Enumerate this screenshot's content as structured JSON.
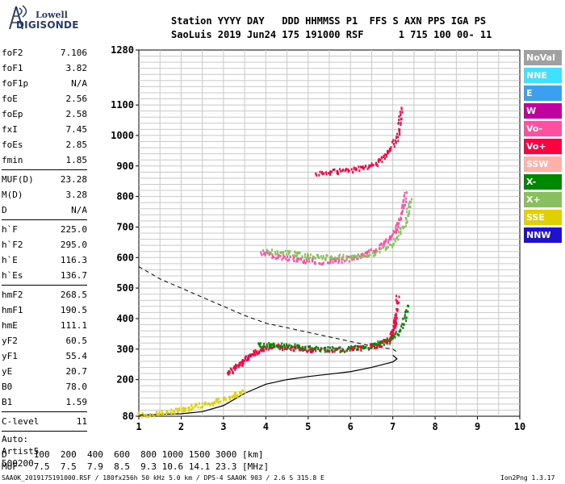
{
  "logo": {
    "line1": "Lowell",
    "line2": "DIGISONDE"
  },
  "header": {
    "line1": "Station YYYY DAY   DDD HHMMSS P1  FFS S AXN PPS IGA PS",
    "line2": "SaoLuis 2019 Jun24 175 191000 RSF      1 715 100 00- 11"
  },
  "params": [
    {
      "group": [
        {
          "label": "foF2",
          "value": "7.106"
        },
        {
          "label": "foF1",
          "value": "3.82"
        },
        {
          "label": "foF1p",
          "value": "N/A"
        },
        {
          "label": "foE",
          "value": "2.56"
        },
        {
          "label": "foEp",
          "value": "2.58"
        },
        {
          "label": "fxI",
          "value": "7.45"
        },
        {
          "label": "foEs",
          "value": "2.85"
        },
        {
          "label": "fmin",
          "value": "1.85"
        }
      ]
    },
    {
      "group": [
        {
          "label": "MUF(D)",
          "value": "23.28"
        },
        {
          "label": "M(D)",
          "value": "3.28"
        },
        {
          "label": "D",
          "value": "N/A"
        }
      ]
    },
    {
      "group": [
        {
          "label": "h`F",
          "value": "225.0"
        },
        {
          "label": "h`F2",
          "value": "295.0"
        },
        {
          "label": "h`E",
          "value": "116.3"
        },
        {
          "label": "h`Es",
          "value": "136.7"
        }
      ]
    },
    {
      "group": [
        {
          "label": "hmF2",
          "value": "268.5"
        },
        {
          "label": "hmF1",
          "value": "190.5"
        },
        {
          "label": "hmE",
          "value": "111.1"
        },
        {
          "label": "yF2",
          "value": "60.5"
        },
        {
          "label": "yF1",
          "value": "55.4"
        },
        {
          "label": "yE",
          "value": "20.7"
        },
        {
          "label": "B0",
          "value": "78.0"
        },
        {
          "label": "B1",
          "value": "1.59"
        }
      ]
    },
    {
      "group": [
        {
          "label": "C-level",
          "value": "11"
        }
      ]
    }
  ],
  "auto_info": [
    "Auto:",
    "Artist5",
    "500200"
  ],
  "legend": [
    {
      "label": "NoVal",
      "color": "#a0a0a0"
    },
    {
      "label": "NNE",
      "color": "#40e0ff"
    },
    {
      "label": "E",
      "color": "#3ca0f0"
    },
    {
      "label": "W",
      "color": "#c000a0"
    },
    {
      "label": "Vo-",
      "color": "#ff4fa0"
    },
    {
      "label": "Vo+",
      "color": "#ff0040"
    },
    {
      "label": "SSW",
      "color": "#ffb0a8"
    },
    {
      "label": "X-",
      "color": "#008800"
    },
    {
      "label": "X+",
      "color": "#88c060"
    },
    {
      "label": "SSE",
      "color": "#e0d000"
    },
    {
      "label": "NNW",
      "color": "#2010d0"
    }
  ],
  "bottom": {
    "line1": "D     100  200  400  600  800 1000 1500 3000 [km]",
    "line2": "MUF   7.5  7.5  7.9  8.5  9.3 10.6 14.1 23.3 [MHz]"
  },
  "footer": "SAA0K_2019175191000.RSF / 180fx256h 50 kHz 5.0 km / DPS-4 SAA0K 903 / 2.6 S 315.8 E",
  "version": "Ion2Png 1.3.17",
  "chart_data": {
    "type": "scatter",
    "xlim": [
      1,
      10
    ],
    "ylim": [
      80,
      1280
    ],
    "x_ticks": [
      1,
      2,
      3,
      4,
      5,
      6,
      7,
      8,
      9,
      10
    ],
    "y_ticks": [
      80,
      200,
      300,
      400,
      500,
      600,
      700,
      800,
      900,
      1000,
      1100,
      1280
    ],
    "grid": true,
    "traces": [
      {
        "name": "F2-O",
        "color": "#ff0040",
        "x": [
          3.1,
          3.3,
          3.5,
          3.7,
          3.9,
          4.2,
          4.6,
          5.0,
          5.5,
          6.0,
          6.4,
          6.7,
          6.9,
          7.0,
          7.05,
          7.1
        ],
        "y": [
          225,
          245,
          268,
          288,
          305,
          312,
          305,
          300,
          300,
          303,
          310,
          320,
          335,
          360,
          400,
          480
        ]
      },
      {
        "name": "F2-O-2hop",
        "color": "#ff4fa0",
        "x": [
          3.9,
          4.3,
          4.8,
          5.3,
          5.8,
          6.3,
          6.7,
          7.0,
          7.2,
          7.3
        ],
        "y": [
          620,
          605,
          595,
          590,
          595,
          610,
          640,
          680,
          740,
          820
        ]
      },
      {
        "name": "F2-O-3hop",
        "color": "#ff0040",
        "x": [
          5.2,
          5.7,
          6.2,
          6.6,
          6.9,
          7.1,
          7.2
        ],
        "y": [
          880,
          885,
          895,
          910,
          950,
          1000,
          1100
        ]
      },
      {
        "name": "F2-X",
        "color": "#008800",
        "x": [
          3.8,
          4.2,
          4.7,
          5.2,
          5.8,
          6.4,
          6.9,
          7.2,
          7.35
        ],
        "y": [
          315,
          318,
          310,
          303,
          302,
          310,
          330,
          370,
          450
        ]
      },
      {
        "name": "F2-X-2hop",
        "color": "#88c060",
        "x": [
          4.0,
          4.5,
          5.0,
          5.5,
          6.0,
          6.5,
          7.0,
          7.3,
          7.4
        ],
        "y": [
          625,
          618,
          608,
          603,
          606,
          615,
          650,
          720,
          800
        ]
      },
      {
        "name": "E-Es",
        "color": "#e0d000",
        "x": [
          1.0,
          1.5,
          2.0,
          2.4,
          2.8,
          3.2,
          3.5
        ],
        "y": [
          88,
          92,
          105,
          118,
          130,
          150,
          165
        ]
      }
    ],
    "model_profile": {
      "x": [
        1.0,
        1.5,
        2.0,
        2.5,
        3.0,
        3.5,
        4.0,
        4.5,
        5.0,
        5.5,
        6.0,
        6.5,
        7.0,
        7.1,
        7.0
      ],
      "y": [
        84,
        86,
        88,
        95,
        115,
        155,
        185,
        200,
        210,
        218,
        226,
        240,
        258,
        268,
        280
      ]
    },
    "virtual_height_model": {
      "x": [
        1.0,
        1.5,
        2.0,
        2.5,
        3.0,
        3.5,
        4.0,
        4.5,
        5.0,
        5.5,
        6.0,
        6.5,
        7.0,
        7.1
      ],
      "y": [
        570,
        530,
        500,
        470,
        440,
        410,
        385,
        370,
        355,
        340,
        325,
        310,
        300,
        290
      ]
    }
  }
}
